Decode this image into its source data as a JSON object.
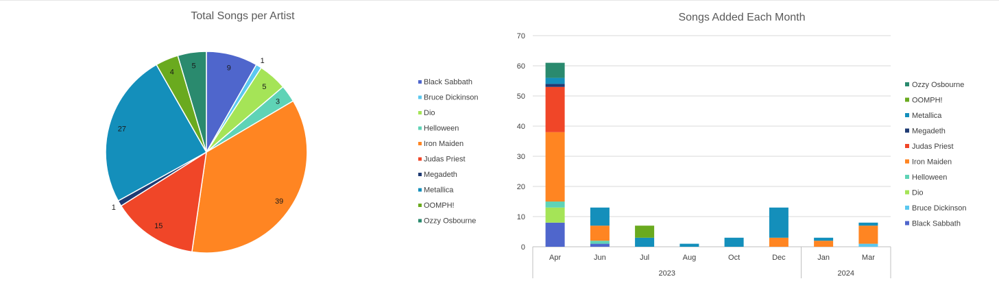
{
  "chart_data": [
    {
      "type": "pie",
      "title": "Total Songs per Artist",
      "categories": [
        "Black Sabbath",
        "Bruce Dickinson",
        "Dio",
        "Helloween",
        "Iron Maiden",
        "Judas Priest",
        "Megadeth",
        "Metallica",
        "OOMPH!",
        "Ozzy Osbourne"
      ],
      "values": [
        9,
        1,
        5,
        3,
        39,
        15,
        1,
        27,
        4,
        5
      ],
      "colors": [
        "#4f66cc",
        "#5bc8ef",
        "#a5e457",
        "#5fd3b6",
        "#ff8522",
        "#f04628",
        "#1f3b73",
        "#148fbb",
        "#6aaa1f",
        "#2a8a6e"
      ],
      "legend_position": "right"
    },
    {
      "type": "bar",
      "stacked": true,
      "title": "Songs Added Each Month",
      "categories": [
        "Apr",
        "Jun",
        "Jul",
        "Aug",
        "Oct",
        "Dec",
        "Jan",
        "Mar"
      ],
      "year_groups": [
        {
          "label": "2023",
          "count": 6
        },
        {
          "label": "2024",
          "count": 2
        }
      ],
      "ylim": [
        0,
        70
      ],
      "yticks": [
        0,
        10,
        20,
        30,
        40,
        50,
        60,
        70
      ],
      "grid": true,
      "legend_position": "right",
      "series": [
        {
          "name": "Black Sabbath",
          "color": "#4f66cc",
          "values": [
            8,
            1,
            0,
            0,
            0,
            0,
            0,
            0
          ]
        },
        {
          "name": "Bruce Dickinson",
          "color": "#5bc8ef",
          "values": [
            0,
            0,
            0,
            0,
            0,
            0,
            0,
            1
          ]
        },
        {
          "name": "Dio",
          "color": "#a5e457",
          "values": [
            5,
            0,
            0,
            0,
            0,
            0,
            0,
            0
          ]
        },
        {
          "name": "Helloween",
          "color": "#5fd3b6",
          "values": [
            2,
            1,
            0,
            0,
            0,
            0,
            0,
            0
          ]
        },
        {
          "name": "Iron Maiden",
          "color": "#ff8522",
          "values": [
            23,
            5,
            0,
            0,
            0,
            3,
            2,
            6
          ]
        },
        {
          "name": "Judas Priest",
          "color": "#f04628",
          "values": [
            15,
            0,
            0,
            0,
            0,
            0,
            0,
            0
          ]
        },
        {
          "name": "Megadeth",
          "color": "#1f3b73",
          "values": [
            1,
            0,
            0,
            0,
            0,
            0,
            0,
            0
          ]
        },
        {
          "name": "Metallica",
          "color": "#148fbb",
          "values": [
            2,
            6,
            3,
            1,
            3,
            10,
            1,
            1
          ]
        },
        {
          "name": "OOMPH!",
          "color": "#6aaa1f",
          "values": [
            0,
            0,
            4,
            0,
            0,
            0,
            0,
            0
          ]
        },
        {
          "name": "Ozzy Osbourne",
          "color": "#2a8a6e",
          "values": [
            5,
            0,
            0,
            0,
            0,
            0,
            0,
            0
          ]
        }
      ]
    }
  ]
}
